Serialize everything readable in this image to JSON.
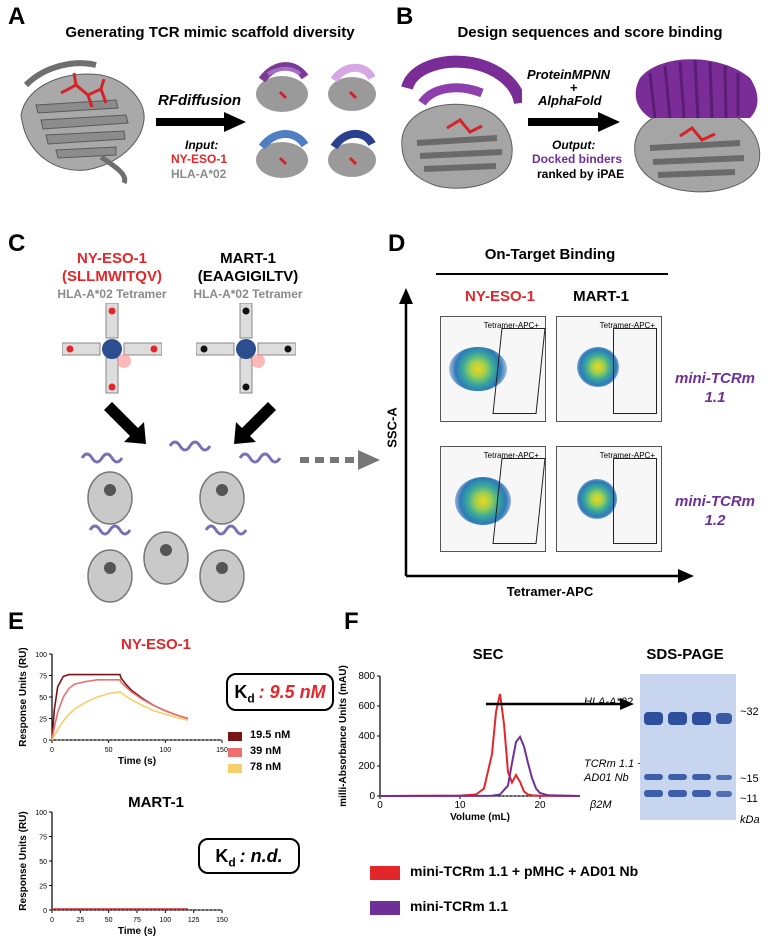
{
  "panels": {
    "a": {
      "letter": "A",
      "title": "Generating TCR mimic scaffold diversity",
      "method": "RFdiffusion",
      "input_label": "Input:",
      "input_peptide": "NY-ESO-1",
      "input_hla": "HLA-A*02"
    },
    "b": {
      "letter": "B",
      "title": "Design sequences and score binding",
      "tool1": "ProteinMPNN",
      "plus": "+",
      "tool2": "AlphaFold",
      "output_label": "Output:",
      "output_binders": "Docked binders",
      "output_rank": "ranked by iPAE"
    },
    "c": {
      "letter": "C",
      "nyeso_name": "NY-ESO-1",
      "nyeso_seq": "(SLLMWITQV)",
      "nyeso_tet": "HLA-A*02 Tetramer",
      "mart_name": "MART-1",
      "mart_seq": "(EAAGIGILTV)",
      "mart_tet": "HLA-A*02 Tetramer"
    },
    "d": {
      "letter": "D",
      "title": "On-Target Binding",
      "col1": "NY-ESO-1",
      "col2": "MART-1",
      "row1_a": "mini-TCRm",
      "row1_b": "1.1",
      "row2_a": "mini-TCRm",
      "row2_b": "1.2",
      "gate_label": "Tetramer-APC+",
      "ylabel": "SSC-A",
      "xlabel": "Tetramer-APC"
    },
    "e": {
      "letter": "E",
      "title1": "NY-ESO-1",
      "title2": "MART-1",
      "kd_sym": "K",
      "kd_sub": "d",
      "kd1_value": ": 9.5 nM",
      "kd2_value": ": n.d."
    },
    "f": {
      "letter": "F",
      "sec_title": "SEC",
      "gel_title": "SDS-PAGE",
      "gel_hla": "HLA-A*02",
      "gel_tcrm_1": "TCRm 1.1 +",
      "gel_tcrm_2": "AD01 Nb",
      "gel_b2m": "β2M",
      "mw_32": "~32",
      "mw_15": "~15",
      "mw_11": "~11",
      "mw_unit": "kDa"
    }
  },
  "colors": {
    "red": "#e3262a",
    "purple": "#6f2f98",
    "gray": "#8a8a8a",
    "dark_red": "#7a1416",
    "salmon": "#ec6e6e",
    "yellow": "#f7cf6a",
    "gel_blue": "#c7d6ee",
    "band": "#2d4f9c"
  },
  "chart_data": [
    {
      "type": "line",
      "title": "NY-ESO-1",
      "xlabel": "Time (s)",
      "ylabel": "Response Units (RU)",
      "xlim": [
        0,
        150
      ],
      "ylim": [
        0,
        100
      ],
      "xticks": [
        0,
        50,
        100,
        150
      ],
      "yticks": [
        0,
        25,
        50,
        75,
        100
      ],
      "series": [
        {
          "name": "19.5 nM",
          "color": "#7a1416",
          "x": [
            0,
            2,
            5,
            10,
            15,
            20,
            30,
            40,
            50,
            60,
            61,
            65,
            70,
            80,
            90,
            100,
            110,
            120
          ],
          "y": [
            0,
            35,
            62,
            74,
            76,
            76,
            76,
            76,
            76,
            76,
            72,
            65,
            58,
            48,
            40,
            34,
            29,
            25
          ]
        },
        {
          "name": "39 nM",
          "color": "#ec6e6e",
          "x": [
            0,
            2,
            5,
            10,
            15,
            20,
            30,
            40,
            50,
            60,
            61,
            65,
            70,
            80,
            90,
            100,
            110,
            120
          ],
          "y": [
            0,
            15,
            32,
            50,
            60,
            65,
            68,
            70,
            70,
            70,
            67,
            62,
            56,
            47,
            40,
            34,
            29,
            25
          ]
        },
        {
          "name": "78 nM",
          "color": "#f7cf6a",
          "x": [
            0,
            2,
            5,
            10,
            15,
            20,
            30,
            40,
            50,
            60,
            61,
            65,
            70,
            80,
            90,
            100,
            110,
            120
          ],
          "y": [
            0,
            5,
            12,
            22,
            30,
            36,
            44,
            50,
            54,
            56,
            55,
            51,
            47,
            40,
            34,
            30,
            26,
            23
          ]
        }
      ]
    },
    {
      "type": "line",
      "title": "MART-1",
      "xlabel": "Time (s)",
      "ylabel": "Response Units (RU)",
      "xlim": [
        0,
        150
      ],
      "ylim": [
        0,
        100
      ],
      "xticks": [
        0,
        25,
        50,
        75,
        100,
        125,
        150
      ],
      "yticks": [
        0,
        25,
        50,
        75,
        100
      ],
      "series": [
        {
          "name": "mini-TCRm",
          "color": "#e3262a",
          "x": [
            0,
            120
          ],
          "y": [
            1,
            1
          ]
        }
      ]
    },
    {
      "type": "line",
      "title": "SEC",
      "xlabel": "Volume (mL)",
      "ylabel": "milli-Absorbance Units (mAU)",
      "xlim": [
        0,
        25
      ],
      "ylim": [
        0,
        800
      ],
      "xticks": [
        0,
        10,
        20
      ],
      "yticks": [
        0,
        200,
        400,
        600,
        800
      ],
      "series": [
        {
          "name": "mini-TCRm 1.1 + pMHC + AD01 Nb",
          "color": "#e3262a",
          "x": [
            0,
            10,
            12,
            13,
            14,
            14.5,
            15,
            15.5,
            16,
            16.5,
            17,
            17.5,
            18,
            18.5,
            19,
            20,
            25
          ],
          "y": [
            0,
            3,
            10,
            50,
            280,
            560,
            680,
            480,
            160,
            90,
            140,
            95,
            30,
            10,
            4,
            2,
            0
          ]
        },
        {
          "name": "mini-TCRm 1.1",
          "color": "#6f2f98",
          "x": [
            0,
            14,
            15,
            16,
            16.5,
            17,
            17.5,
            18,
            18.5,
            19,
            19.5,
            20,
            21,
            25
          ],
          "y": [
            0,
            2,
            10,
            70,
            220,
            360,
            395,
            330,
            220,
            120,
            50,
            20,
            5,
            0
          ]
        }
      ]
    }
  ],
  "legend_e": [
    "19.5 nM",
    "39 nM",
    "78 nM"
  ]
}
